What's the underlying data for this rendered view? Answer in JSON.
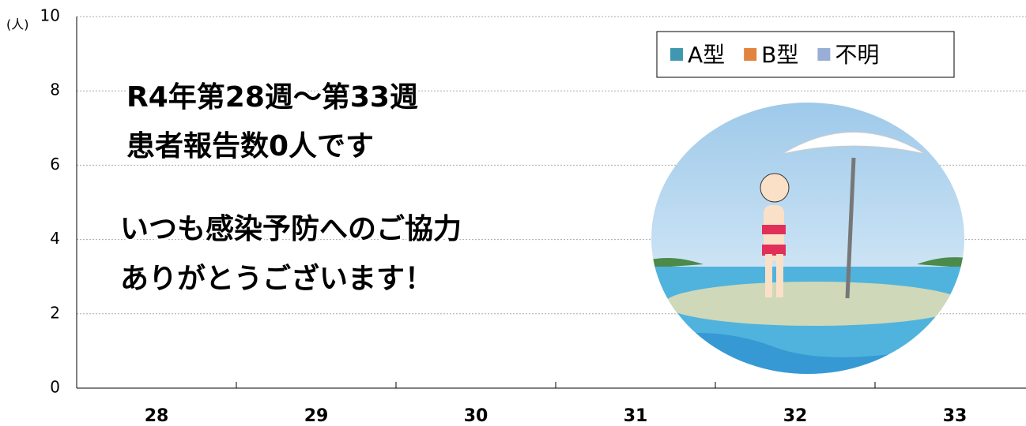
{
  "chart_data": {
    "type": "bar",
    "stacked": true,
    "y_unit": "(人)",
    "categories": [
      "28",
      "29",
      "30",
      "31",
      "32",
      "33"
    ],
    "series": [
      {
        "name": "A型",
        "color": "#3f98b0",
        "values": [
          0,
          0,
          0,
          0,
          0,
          0
        ]
      },
      {
        "name": "B型",
        "color": "#e2843e",
        "values": [
          0,
          0,
          0,
          0,
          0,
          0
        ]
      },
      {
        "name": "不明",
        "color": "#98aed6",
        "values": [
          0,
          0,
          0,
          0,
          0,
          0
        ]
      }
    ],
    "ylim": [
      0,
      10
    ],
    "yticks": [
      0,
      2,
      4,
      6,
      8,
      10
    ],
    "grid": true,
    "legend": "top-right",
    "annotations": [
      "R4年第28週～第33週",
      "患者報告数0人です",
      "いつも感染予防へのご協力",
      "ありがとうございます！"
    ]
  }
}
